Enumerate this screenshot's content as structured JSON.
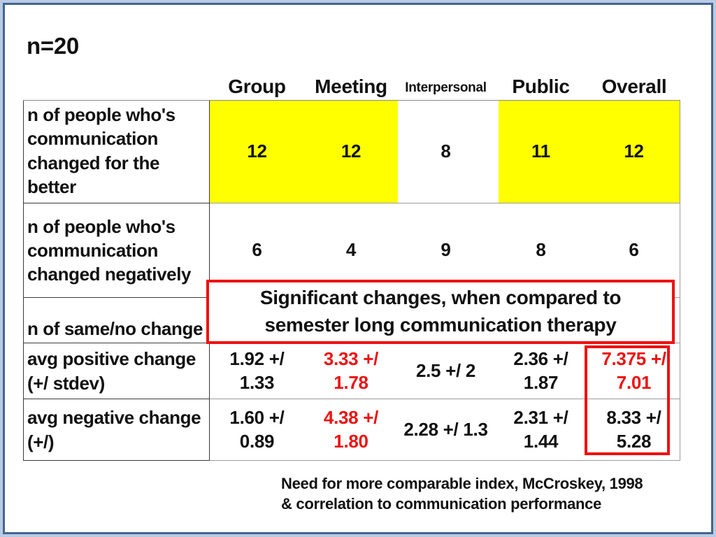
{
  "slide": {
    "sample_size": "n=20",
    "columns": [
      "Group",
      "Meeting",
      "Interpersonal",
      "Public",
      "Overall"
    ],
    "rows": [
      {
        "label": "n of people who's communication changed for the better",
        "values": [
          "12",
          "12",
          "8",
          "11",
          "12"
        ]
      },
      {
        "label": "n of people who's communication changed negatively",
        "values": [
          "6",
          "4",
          "9",
          "8",
          "6"
        ]
      },
      {
        "label": "n of same/no change"
      },
      {
        "label": "avg positive change (+/ stdev)",
        "values": [
          "1.92 +/\n1.33",
          "3.33 +/\n1.78",
          "2.5 +/ 2",
          "2.36 +/\n1.87",
          "7.375 +/\n7.01"
        ]
      },
      {
        "label": "avg negative change (+/)",
        "values": [
          "1.60 +/\n0.89",
          "4.38 +/\n1.80",
          "2.28 +/ 1.3",
          "2.31 +/\n1.44",
          "8.33 +/\n5.28"
        ]
      }
    ],
    "callout": "Significant changes, when compared to\nsemester long communication therapy",
    "caption": "Need for more comparable index, McCroskey, 1998\n& correlation to communication performance",
    "colors": {
      "highlight": "#ffff00",
      "alert_red": "#ee1111",
      "frame_outer": "#b9cbe3",
      "frame_border": "#45648f"
    }
  }
}
